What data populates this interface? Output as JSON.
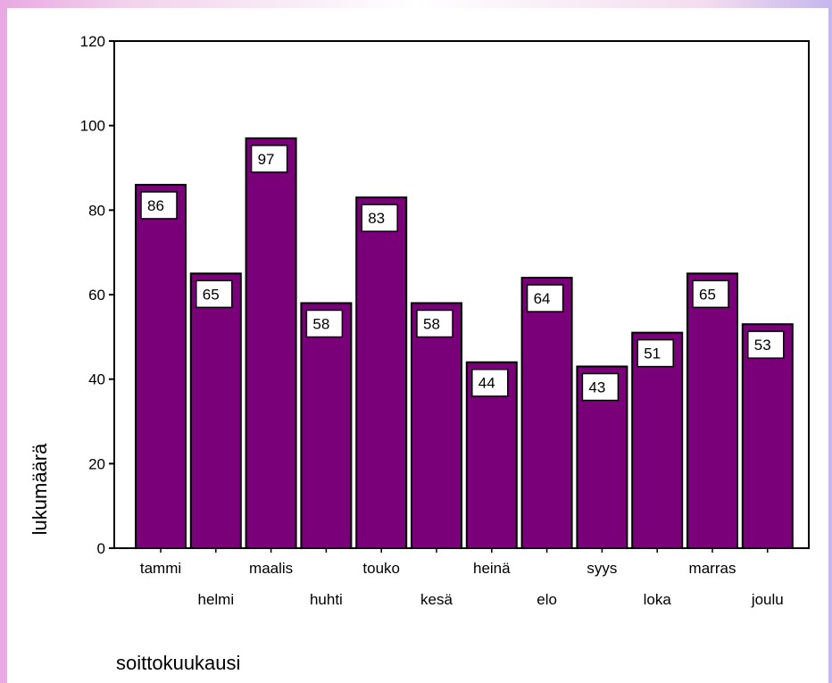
{
  "chart_data": {
    "type": "bar",
    "categories": [
      "tammi",
      "helmi",
      "maalis",
      "huhti",
      "touko",
      "kesä",
      "heinä",
      "elo",
      "syys",
      "loka",
      "marras",
      "joulu"
    ],
    "values": [
      86,
      65,
      97,
      58,
      83,
      58,
      44,
      64,
      43,
      51,
      65,
      53
    ],
    "xlabel": "soittokuukausi",
    "ylabel": "lukumäärä",
    "ylim": [
      0,
      120
    ],
    "yticks": [
      0,
      20,
      40,
      60,
      80,
      100,
      120
    ],
    "bar_color": "#7a007a",
    "data_labels": true,
    "grid": false,
    "legend": "none"
  }
}
